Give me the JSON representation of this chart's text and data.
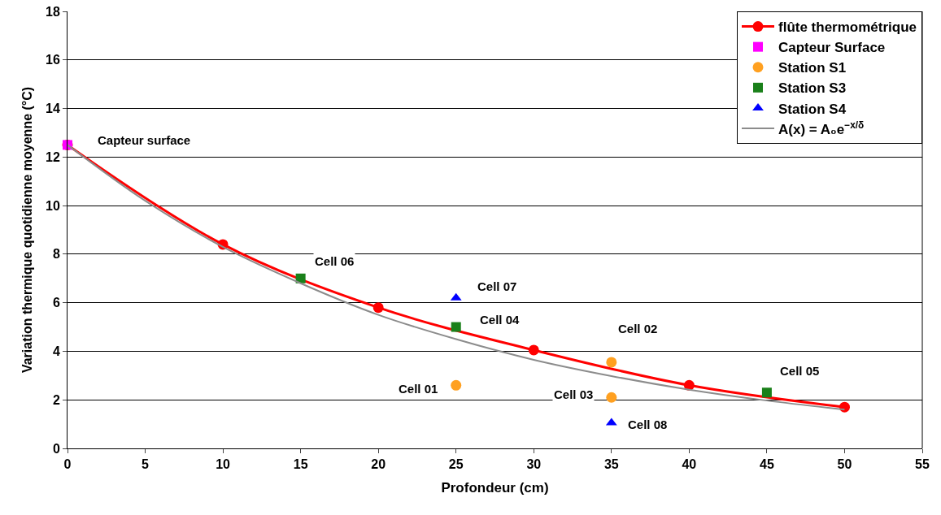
{
  "chart_data": {
    "type": "scatter",
    "xlabel": "Profondeur (cm)",
    "ylabel": "Variation thermique quotidienne moyenne (°C)",
    "xlim": [
      0,
      55
    ],
    "xticks": [
      0,
      5,
      10,
      15,
      20,
      25,
      30,
      35,
      40,
      45,
      50,
      55
    ],
    "ylim": [
      0,
      18
    ],
    "yticks": [
      0,
      2,
      4,
      6,
      8,
      10,
      12,
      14,
      16,
      18
    ],
    "grid": "y",
    "legend": "top right",
    "series": [
      {
        "name": "flûte thermométrique",
        "type": "line",
        "marker": "circle",
        "color": "#ff0000",
        "x": [
          0,
          10,
          20,
          30,
          40,
          50
        ],
        "values": [
          12.5,
          8.4,
          5.8,
          4.05,
          2.6,
          1.7
        ]
      },
      {
        "name": "Capteur Surface",
        "type": "scatter",
        "marker": "square",
        "color": "#ff00ff",
        "x": [
          0
        ],
        "values": [
          12.5
        ]
      },
      {
        "name": "Station S1",
        "type": "scatter",
        "marker": "circle",
        "color": "#ffa020",
        "x": [
          25,
          35,
          35
        ],
        "values": [
          2.6,
          3.55,
          2.1
        ]
      },
      {
        "name": "Station S3",
        "type": "scatter",
        "marker": "square",
        "color": "#1a801a",
        "x": [
          15,
          25,
          45
        ],
        "values": [
          7.0,
          5.0,
          2.3
        ]
      },
      {
        "name": "Station S4",
        "type": "scatter",
        "marker": "triangle",
        "color": "#0000ff",
        "x": [
          25,
          35
        ],
        "values": [
          6.2,
          1.05
        ]
      },
      {
        "name": "A(x) = A₀e$^{−x/δ}$",
        "type": "line",
        "marker": "none",
        "color": "#8c8c8c",
        "x": [
          0,
          5,
          10,
          15,
          20,
          25,
          30,
          35,
          40,
          45,
          50
        ],
        "values": [
          12.5,
          10.2,
          8.3,
          6.8,
          5.5,
          4.5,
          3.65,
          2.98,
          2.42,
          1.97,
          1.6
        ]
      }
    ],
    "annotations": [
      {
        "text": "Capteur surface",
        "x": 0,
        "y": 12.5
      },
      {
        "text": "Cell 06",
        "x": 15,
        "y": 7.0
      },
      {
        "text": "Cell 07",
        "x": 25,
        "y": 6.2
      },
      {
        "text": "Cell 04",
        "x": 25,
        "y": 5.0
      },
      {
        "text": "Cell 02",
        "x": 35,
        "y": 3.55
      },
      {
        "text": "Cell 01",
        "x": 25,
        "y": 2.6
      },
      {
        "text": "Cell 03",
        "x": 35,
        "y": 2.1
      },
      {
        "text": "Cell 05",
        "x": 45,
        "y": 2.3
      },
      {
        "text": "Cell 08",
        "x": 35,
        "y": 1.05
      }
    ]
  }
}
